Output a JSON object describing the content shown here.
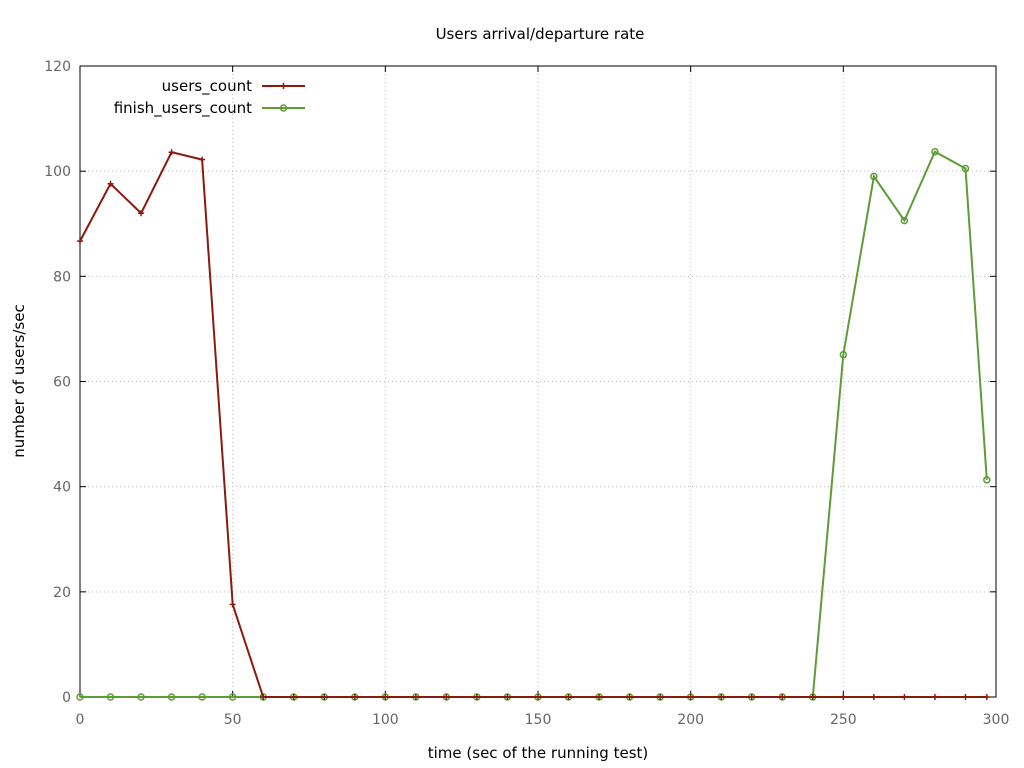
{
  "chart_data": {
    "type": "line",
    "title": "Users arrival/departure rate",
    "xlabel": "time (sec of the running test)",
    "ylabel": "number of users/sec",
    "xlim": [
      0,
      300
    ],
    "ylim": [
      0,
      120
    ],
    "xticks": [
      0,
      50,
      100,
      150,
      200,
      250,
      300
    ],
    "yticks": [
      0,
      20,
      40,
      60,
      80,
      100,
      120
    ],
    "grid": true,
    "legend_position": "top-left",
    "series": [
      {
        "name": "users_count",
        "color": "#8b1a0e",
        "marker": "plus",
        "x": [
          0,
          10,
          20,
          30,
          40,
          50,
          60,
          70,
          80,
          90,
          100,
          110,
          120,
          130,
          140,
          150,
          160,
          170,
          180,
          190,
          200,
          210,
          220,
          230,
          240,
          250,
          260,
          270,
          280,
          290,
          297
        ],
        "y": [
          86.7,
          97.6,
          92,
          103.6,
          102.2,
          17.6,
          0,
          0,
          0,
          0,
          0,
          0,
          0,
          0,
          0,
          0,
          0,
          0,
          0,
          0,
          0,
          0,
          0,
          0,
          0,
          0,
          0,
          0,
          0,
          0,
          0
        ]
      },
      {
        "name": "finish_users_count",
        "color": "#5e9c36",
        "marker": "circle",
        "x": [
          0,
          10,
          20,
          30,
          40,
          50,
          60,
          70,
          80,
          90,
          100,
          110,
          120,
          130,
          140,
          150,
          160,
          170,
          180,
          190,
          200,
          210,
          220,
          230,
          240,
          250,
          260,
          270,
          280,
          290,
          297
        ],
        "y": [
          0,
          0,
          0,
          0,
          0,
          0,
          0,
          0,
          0,
          0,
          0,
          0,
          0,
          0,
          0,
          0,
          0,
          0,
          0,
          0,
          0,
          0,
          0,
          0,
          0,
          65.1,
          99,
          90.6,
          103.7,
          100.5,
          41.3
        ]
      }
    ]
  }
}
